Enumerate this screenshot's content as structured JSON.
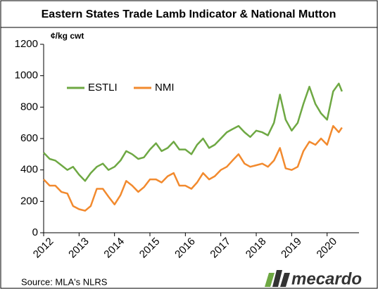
{
  "chart_data": {
    "type": "line",
    "title": "Eastern States Trade Lamb Indicator & National Mutton",
    "y_label": "¢/kg cwt",
    "source": "Source: MLA's NLRS",
    "logo": "mecardo",
    "x": [
      2012.0,
      2012.17,
      2012.33,
      2012.5,
      2012.67,
      2012.83,
      2013.0,
      2013.17,
      2013.33,
      2013.5,
      2013.67,
      2013.83,
      2014.0,
      2014.17,
      2014.33,
      2014.5,
      2014.67,
      2014.83,
      2015.0,
      2015.17,
      2015.33,
      2015.5,
      2015.67,
      2015.83,
      2016.0,
      2016.17,
      2016.33,
      2016.5,
      2016.67,
      2016.83,
      2017.0,
      2017.17,
      2017.33,
      2017.5,
      2017.67,
      2017.83,
      2018.0,
      2018.17,
      2018.33,
      2018.5,
      2018.67,
      2018.83,
      2019.0,
      2019.17,
      2019.33,
      2019.5,
      2019.67,
      2019.83,
      2020.0,
      2020.17,
      2020.33,
      2020.42
    ],
    "series": [
      {
        "name": "ESTLI",
        "color": "#6ea843",
        "values": [
          510,
          470,
          460,
          430,
          400,
          420,
          370,
          330,
          380,
          420,
          440,
          400,
          420,
          460,
          520,
          500,
          470,
          480,
          530,
          570,
          520,
          540,
          580,
          530,
          530,
          500,
          560,
          600,
          540,
          560,
          600,
          640,
          660,
          680,
          640,
          610,
          650,
          640,
          620,
          700,
          880,
          720,
          650,
          700,
          820,
          930,
          820,
          760,
          720,
          900,
          950,
          900
        ]
      },
      {
        "name": "NMI",
        "color": "#f28a2e",
        "values": [
          340,
          300,
          300,
          260,
          250,
          170,
          150,
          140,
          170,
          280,
          280,
          230,
          180,
          240,
          330,
          300,
          260,
          290,
          340,
          340,
          320,
          360,
          380,
          300,
          300,
          280,
          320,
          380,
          340,
          360,
          400,
          420,
          460,
          500,
          440,
          420,
          430,
          440,
          420,
          460,
          540,
          410,
          400,
          420,
          520,
          580,
          560,
          600,
          560,
          680,
          640,
          670
        ]
      }
    ],
    "xlim": [
      2012,
      2020.9
    ],
    "xticks": [
      2012,
      2013,
      2014,
      2015,
      2016,
      2017,
      2018,
      2019,
      2020
    ],
    "ylim": [
      0,
      1200
    ],
    "yticks": [
      0,
      200,
      400,
      600,
      800,
      1000,
      1200
    ],
    "grid": false
  }
}
